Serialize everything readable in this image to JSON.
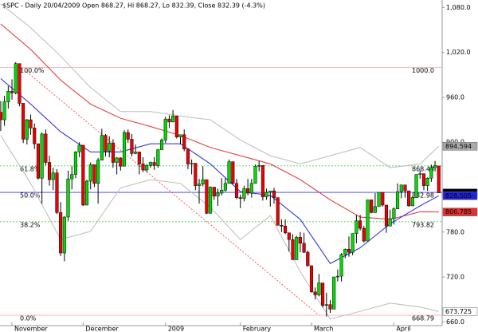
{
  "chart_data": {
    "type": "candlestick",
    "title": "$SPC - Daily 20/04/2009 Open 868.27, Hi 868.27, Lo 832.39, Close 832.39 (-4.3%)",
    "categories": [
      null,
      null,
      null,
      "November",
      null,
      null,
      null,
      null,
      null,
      null,
      null,
      null,
      null,
      null,
      null,
      null,
      null,
      null,
      null,
      null,
      null,
      null,
      "December",
      null,
      null,
      null,
      null,
      null,
      null,
      null,
      null,
      null,
      null,
      null,
      null,
      null,
      null,
      null,
      null,
      null,
      null,
      null,
      null,
      null,
      "2009",
      null,
      null,
      null,
      null,
      null,
      null,
      null,
      null,
      null,
      null,
      null,
      null,
      null,
      null,
      null,
      null,
      null,
      null,
      null,
      "February",
      null,
      null,
      null,
      null,
      null,
      null,
      null,
      null,
      null,
      null,
      null,
      null,
      null,
      null,
      null,
      null,
      null,
      null,
      "March",
      null,
      null,
      null,
      null,
      null,
      null,
      null,
      null,
      null,
      null,
      null,
      null,
      null,
      null,
      null,
      null,
      null,
      null,
      null,
      null,
      null,
      "April",
      null,
      null,
      null,
      null,
      null,
      null,
      null,
      null,
      null,
      null,
      null,
      null
    ],
    "open": [
      940,
      930,
      954,
      968,
      966,
      1005,
      952,
      904,
      930,
      919,
      898,
      852,
      911,
      873,
      850,
      859,
      806,
      752,
      800,
      851,
      857,
      887,
      896,
      816,
      848,
      870,
      845,
      876,
      909,
      888,
      899,
      873,
      879,
      868,
      913,
      904,
      885,
      887,
      871,
      863,
      869,
      873,
      869,
      890,
      903,
      931,
      927,
      935,
      907,
      910,
      891,
      871,
      872,
      842,
      844,
      850,
      805,
      840,
      828,
      832,
      836,
      845,
      874,
      845,
      826,
      825,
      838,
      832,
      845,
      868,
      869,
      827,
      833,
      835,
      826,
      789,
      788,
      779,
      770,
      743,
      773,
      765,
      753,
      735,
      700,
      696,
      712,
      682,
      683,
      677,
      720,
      721,
      750,
      757,
      753,
      778,
      795,
      785,
      768,
      823,
      806,
      814,
      833,
      816,
      788,
      798,
      811,
      834,
      843,
      835,
      815,
      826,
      857,
      858,
      842,
      852,
      866,
      868.27
    ],
    "high": [
      955,
      962,
      975,
      984,
      1007,
      1005,
      952,
      931,
      937,
      925,
      898,
      913,
      917,
      882,
      866,
      864,
      820,
      801,
      862,
      868,
      888,
      900,
      896,
      850,
      873,
      870,
      879,
      918,
      911,
      908,
      904,
      880,
      880,
      916,
      917,
      911,
      897,
      887,
      880,
      871,
      874,
      880,
      891,
      905,
      934,
      936,
      943,
      935,
      910,
      917,
      891,
      877,
      872,
      851,
      868,
      850,
      841,
      840,
      838,
      852,
      852,
      877,
      874,
      851,
      830,
      842,
      851,
      851,
      870,
      875,
      869,
      838,
      835,
      839,
      826,
      797,
      797,
      778,
      777,
      775,
      780,
      779,
      755,
      735,
      706,
      724,
      712,
      699,
      689,
      720,
      730,
      752,
      758,
      774,
      778,
      803,
      803,
      788,
      823,
      823,
      832,
      833,
      833,
      816,
      810,
      813,
      845,
      843,
      843,
      835,
      828,
      857,
      862,
      858,
      853,
      870,
      875,
      868.27
    ],
    "low": [
      915,
      922,
      945,
      957,
      964,
      948,
      899,
      897,
      910,
      891,
      850,
      818,
      869,
      842,
      836,
      804,
      748,
      741,
      795,
      837,
      852,
      880,
      815,
      818,
      837,
      840,
      818,
      876,
      881,
      880,
      866,
      857,
      862,
      868,
      899,
      881,
      884,
      857,
      860,
      860,
      866,
      863,
      866,
      890,
      899,
      919,
      927,
      905,
      897,
      888,
      864,
      857,
      836,
      818,
      841,
      804,
      805,
      823,
      815,
      829,
      834,
      845,
      844,
      824,
      812,
      821,
      829,
      826,
      845,
      861,
      822,
      823,
      814,
      818,
      789,
      780,
      777,
      754,
      743,
      743,
      753,
      752,
      734,
      699,
      690,
      694,
      679,
      667,
      672,
      677,
      714,
      714,
      745,
      747,
      749,
      765,
      782,
      766,
      768,
      805,
      806,
      814,
      814,
      779,
      788,
      790,
      811,
      825,
      826,
      814,
      815,
      826,
      851,
      836,
      835,
      847,
      861,
      832.39
    ],
    "close": [
      930,
      954,
      968,
      966,
      1005,
      952,
      904,
      930,
      919,
      898,
      852,
      911,
      873,
      850,
      859,
      806,
      752,
      800,
      851,
      857,
      887,
      896,
      816,
      848,
      870,
      845,
      876,
      909,
      888,
      899,
      873,
      879,
      868,
      913,
      904,
      885,
      887,
      871,
      863,
      869,
      873,
      869,
      890,
      903,
      931,
      927,
      935,
      907,
      910,
      891,
      871,
      872,
      842,
      844,
      850,
      805,
      840,
      828,
      832,
      836,
      845,
      874,
      845,
      826,
      825,
      838,
      832,
      845,
      868,
      869,
      827,
      833,
      835,
      826,
      789,
      788,
      779,
      770,
      743,
      773,
      765,
      753,
      735,
      700,
      696,
      712,
      682,
      683,
      677,
      720,
      721,
      750,
      757,
      753,
      778,
      795,
      785,
      768,
      823,
      806,
      814,
      833,
      816,
      788,
      798,
      811,
      834,
      843,
      835,
      815,
      826,
      857,
      858,
      842,
      852,
      866,
      869,
      832.39
    ],
    "up_color": "#00dd00",
    "down_color": "#ee0000",
    "xlim": [
      -0.2,
      117.9
    ],
    "ylim": [
      655,
      1090
    ],
    "yticks": [
      {
        "value": 1080,
        "label": "1,080.0"
      },
      {
        "value": 1020,
        "label": "1,020.0"
      },
      {
        "value": 960,
        "label": "960.0"
      },
      {
        "value": 900,
        "label": "900.0"
      },
      {
        "value": 780,
        "label": "780.0"
      },
      {
        "value": 720,
        "label": "720.0"
      },
      {
        "value": 660,
        "label": "660.0"
      }
    ],
    "overlays": [
      {
        "color": "#bbbbbb",
        "x": [
          0,
          8,
          16,
          24,
          32,
          40,
          48,
          56,
          64,
          72,
          80,
          88,
          96,
          104,
          112,
          117
        ],
        "values": [
          1085,
          1053,
          1015,
          973,
          941,
          941,
          935,
          930,
          903,
          882,
          871,
          882,
          893,
          866,
          871,
          894.594
        ]
      },
      {
        "color": "#bbbbbb",
        "x": [
          0,
          8,
          16,
          24,
          32,
          40,
          48,
          56,
          64,
          72,
          80,
          88,
          96,
          104,
          112,
          117
        ],
        "values": [
          909,
          845,
          770,
          781,
          839,
          850,
          845,
          813,
          770,
          802,
          727,
          664,
          674,
          685,
          680,
          673.725
        ]
      },
      {
        "color": "#e03030",
        "x": [
          0,
          8,
          16,
          24,
          32,
          40,
          48,
          56,
          64,
          72,
          80,
          88,
          96,
          104,
          112,
          117
        ],
        "values": [
          1058,
          1024,
          983,
          951,
          932,
          921,
          909,
          893,
          882,
          871,
          850,
          823,
          800,
          797,
          807,
          806.785
        ]
      },
      {
        "color": "#2222dd",
        "x": [
          0,
          8,
          16,
          24,
          32,
          40,
          48,
          56,
          64,
          72,
          80,
          88,
          96,
          104,
          112,
          117
        ],
        "values": [
          985,
          951,
          914,
          887,
          887,
          898,
          898,
          871,
          834,
          829,
          797,
          738,
          759,
          791,
          815,
          828.505
        ]
      }
    ],
    "trendline": {
      "color": "#ff5555",
      "x": [
        5,
        85
      ],
      "values": [
        1002,
        669
      ]
    },
    "fib_levels": [
      {
        "pct": "100.0%",
        "value": 1000,
        "label": "1000.0",
        "color": "#ffaaaa"
      },
      {
        "pct": "61.8%",
        "value": 868.43,
        "color": "#55cc55"
      },
      {
        "pct": "50.0%",
        "value": 832.98,
        "color": "#3333ff"
      },
      {
        "pct": "38.2%",
        "value": 793.82,
        "color": "#55cc55"
      },
      {
        "pct": "0.0%",
        "value": 668.79,
        "color": "#ffaaaa"
      }
    ],
    "price_markers": [
      {
        "value": 894.594,
        "color": "#aaaaaa",
        "text_color": "#000000"
      },
      {
        "value": 832.39,
        "color": "#000000",
        "text_color": "#ffffff"
      },
      {
        "value": 828.505,
        "color": "#2222dd",
        "text_color": "#ffffff"
      },
      {
        "value": 806.785,
        "color": "#e03030",
        "text_color": "#ffffff"
      },
      {
        "value": 673.725,
        "color": "#ffffff",
        "text_color": "#000000"
      }
    ]
  }
}
